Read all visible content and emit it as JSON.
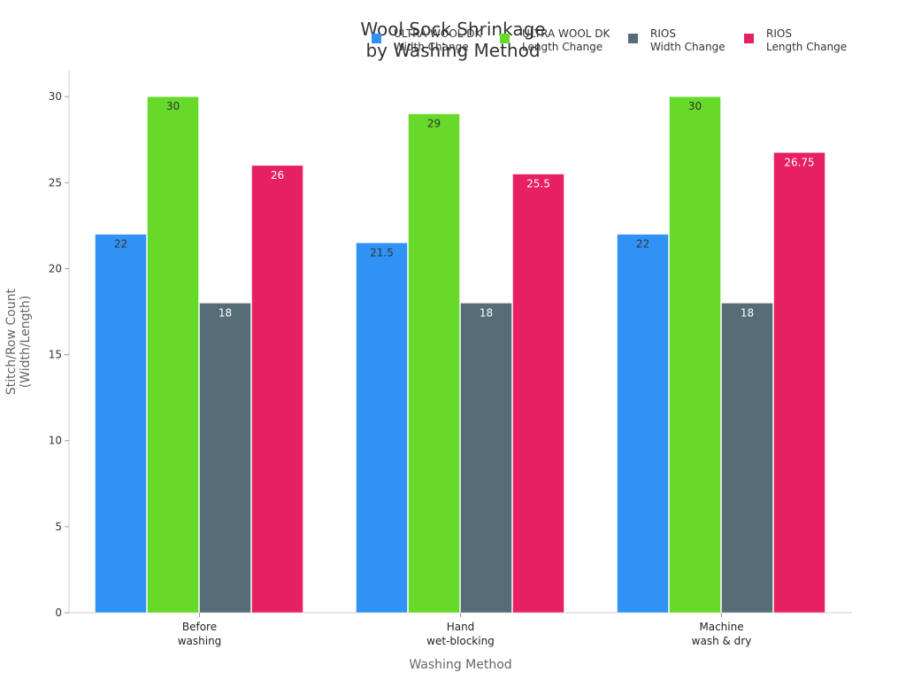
{
  "chart_data": {
    "type": "bar",
    "title": [
      "Wool Sock Shrinkage",
      "by Washing Method"
    ],
    "xlabel": "Washing Method",
    "ylabel": [
      "Stitch/Row Count",
      "(Width/Length)"
    ],
    "categories": [
      [
        "Before",
        "washing"
      ],
      [
        "Hand",
        "wet-blocking"
      ],
      [
        "Machine",
        "wash & dry"
      ]
    ],
    "series": [
      {
        "name": [
          "ULTRA WOOL DK",
          "Width Change"
        ],
        "color": "#3192F6",
        "label_color": "#333333",
        "values": [
          22,
          21.5,
          22
        ]
      },
      {
        "name": [
          "ULTRA WOOL DK",
          "Length Change"
        ],
        "color": "#67D929",
        "label_color": "#333333",
        "values": [
          30,
          29,
          30
        ]
      },
      {
        "name": [
          "RIOS",
          "Width Change"
        ],
        "color": "#566D78",
        "label_color": "#ffffff",
        "values": [
          18,
          18,
          18
        ]
      },
      {
        "name": [
          "RIOS",
          "Length Change"
        ],
        "color": "#E72064",
        "label_color": "#ffffff",
        "values": [
          26,
          25.5,
          26.75
        ]
      }
    ],
    "ylim": [
      0,
      31.5
    ],
    "yticks": [
      0,
      5,
      10,
      15,
      20,
      25,
      30
    ],
    "grid": false,
    "legend_position": "top-right"
  }
}
